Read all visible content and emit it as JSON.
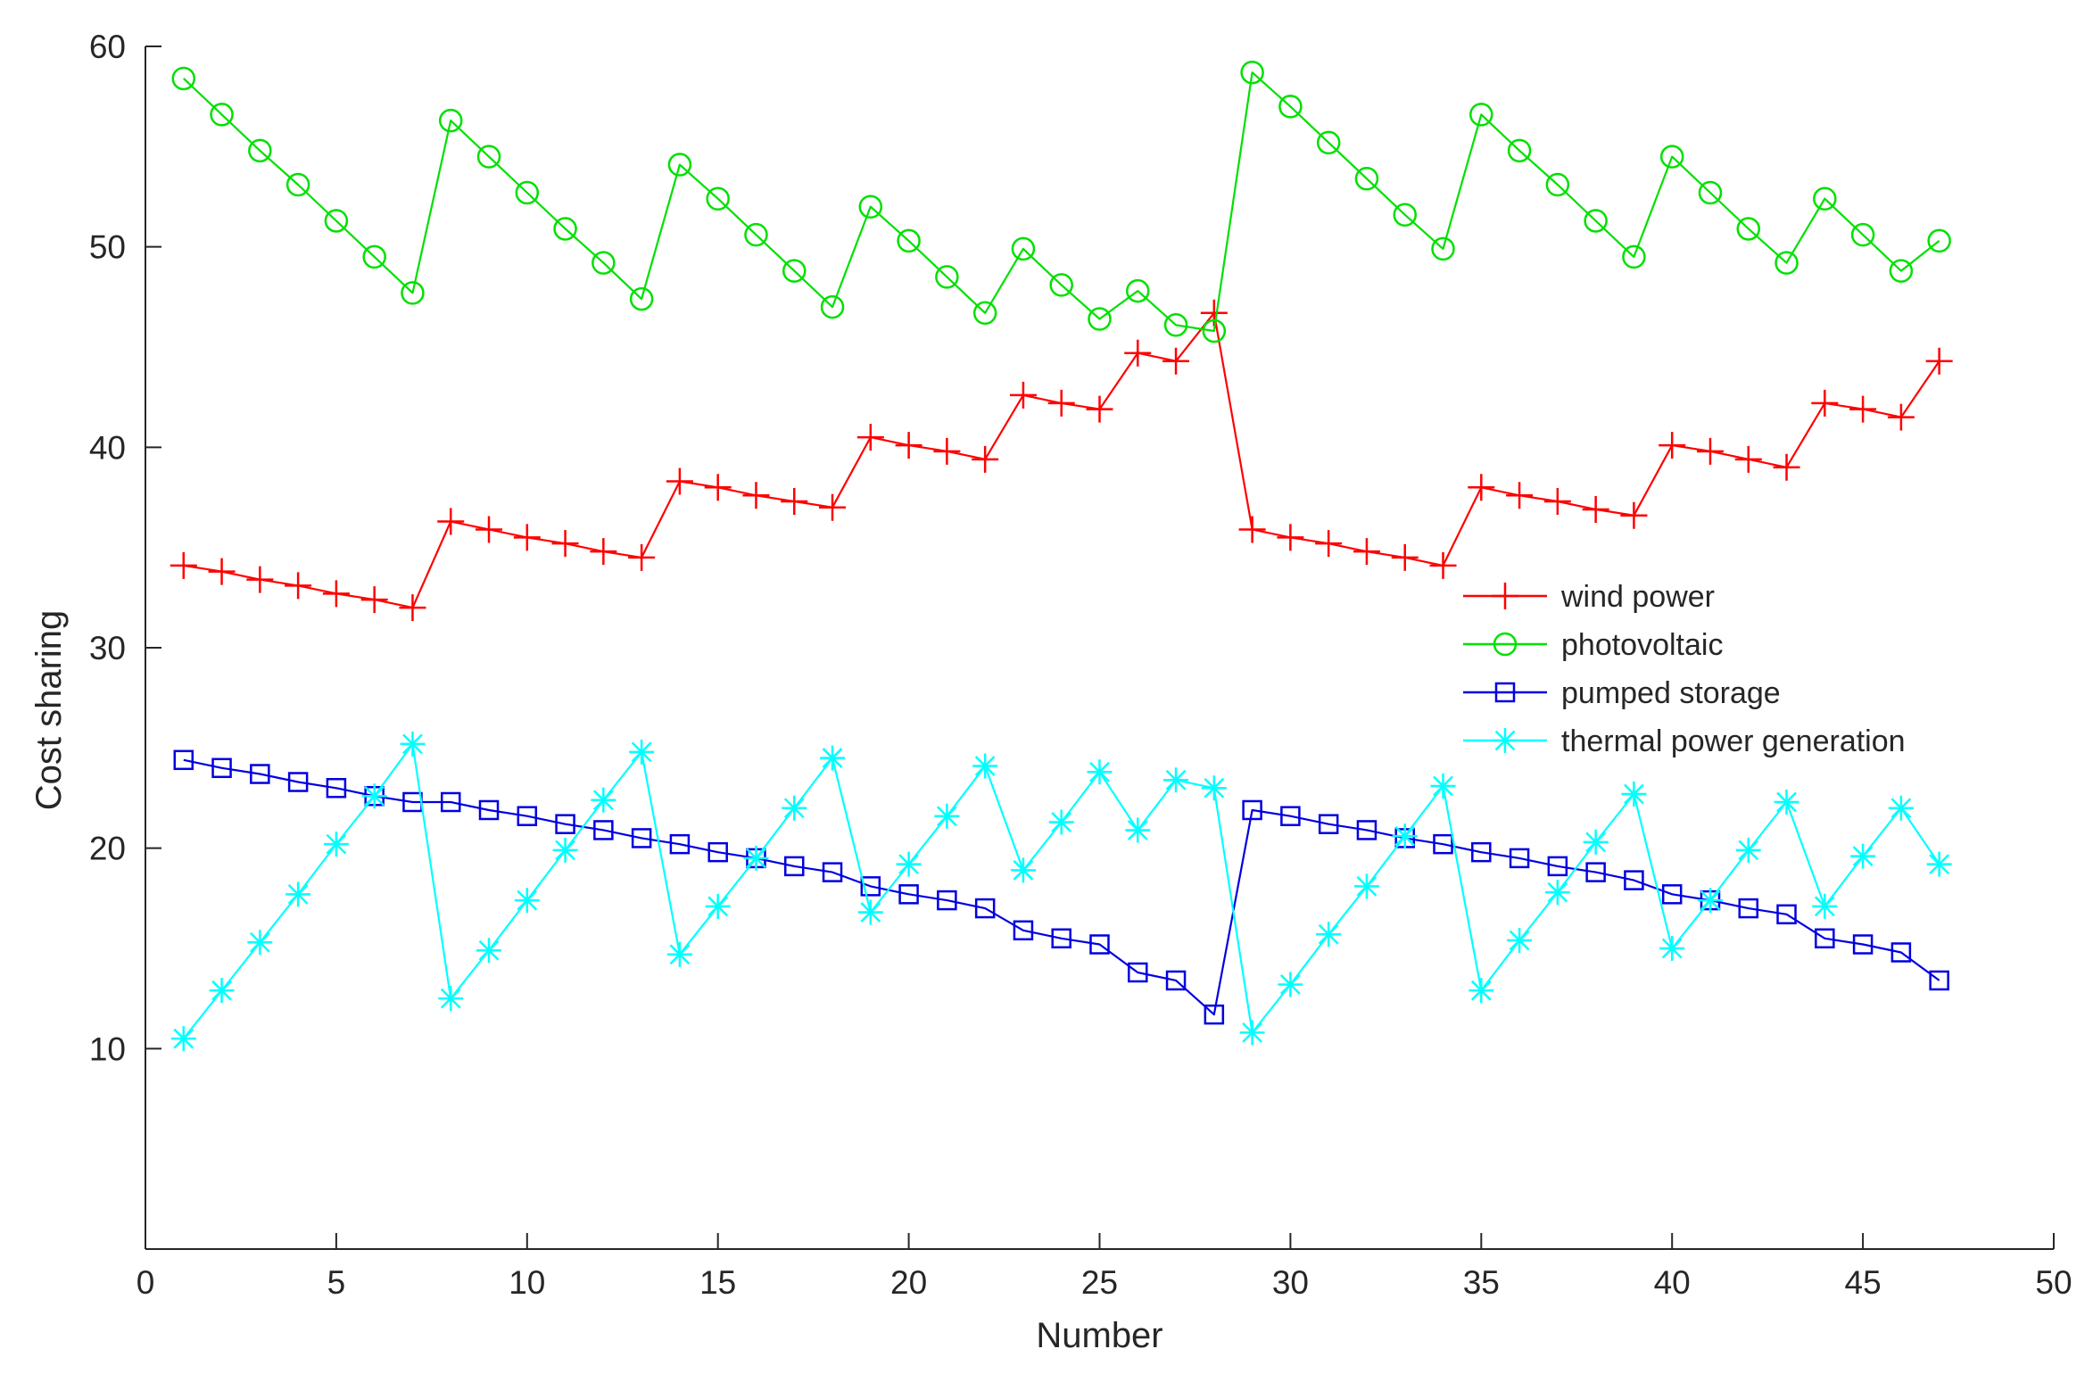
{
  "chart_data": {
    "type": "line",
    "title": "",
    "xlabel": "Number",
    "ylabel": "Cost sharing",
    "xlim": [
      0,
      50
    ],
    "ylim": [
      0,
      60
    ],
    "xticks": [
      0,
      5,
      10,
      15,
      20,
      25,
      30,
      35,
      40,
      45,
      50
    ],
    "yticks": [
      10,
      20,
      30,
      40,
      50,
      60
    ],
    "grid": false,
    "legend_position": "right-center",
    "x": [
      1,
      2,
      3,
      4,
      5,
      6,
      7,
      8,
      9,
      10,
      11,
      12,
      13,
      14,
      15,
      16,
      17,
      18,
      19,
      20,
      21,
      22,
      23,
      24,
      25,
      26,
      27,
      28,
      29,
      30,
      31,
      32,
      33,
      34,
      35,
      36,
      37,
      38,
      39,
      40,
      41,
      42,
      43,
      44,
      45,
      46,
      47
    ],
    "series": [
      {
        "name": "wind power",
        "color": "#ff0000",
        "marker": "plus",
        "values": [
          34.1,
          33.8,
          33.4,
          33.1,
          32.7,
          32.4,
          32.0,
          36.3,
          35.9,
          35.5,
          35.2,
          34.8,
          34.5,
          38.3,
          38.0,
          37.6,
          37.3,
          37.0,
          40.5,
          40.1,
          39.8,
          39.4,
          42.6,
          42.2,
          41.9,
          44.7,
          44.3,
          46.7,
          35.9,
          35.5,
          35.2,
          34.8,
          34.5,
          34.1,
          38.0,
          37.6,
          37.3,
          36.9,
          36.6,
          40.1,
          39.8,
          39.4,
          39.0,
          42.2,
          41.9,
          41.5,
          44.3
        ]
      },
      {
        "name": "photovoltaic",
        "color": "#00e000",
        "marker": "circle",
        "values": [
          58.4,
          56.6,
          54.8,
          53.1,
          51.3,
          49.5,
          47.7,
          56.3,
          54.5,
          52.7,
          50.9,
          49.2,
          47.4,
          54.1,
          52.4,
          50.6,
          48.8,
          47.0,
          52.0,
          50.3,
          48.5,
          46.7,
          49.9,
          48.1,
          46.4,
          47.8,
          46.1,
          45.8,
          58.7,
          57.0,
          55.2,
          53.4,
          51.6,
          49.9,
          56.6,
          54.8,
          53.1,
          51.3,
          49.5,
          54.5,
          52.7,
          50.9,
          49.2,
          52.4,
          50.6,
          48.8,
          50.3
        ]
      },
      {
        "name": "pumped storage",
        "color": "#0000e0",
        "marker": "square",
        "values": [
          24.4,
          24.0,
          23.7,
          23.3,
          23.0,
          22.6,
          22.3,
          22.3,
          21.9,
          21.6,
          21.2,
          20.9,
          20.5,
          20.2,
          19.8,
          19.5,
          19.1,
          18.8,
          18.1,
          17.7,
          17.4,
          17.0,
          15.9,
          15.5,
          15.2,
          13.8,
          13.4,
          11.7,
          21.9,
          21.6,
          21.2,
          20.9,
          20.5,
          20.2,
          19.8,
          19.5,
          19.1,
          18.8,
          18.4,
          17.7,
          17.4,
          17.0,
          16.7,
          15.5,
          15.2,
          14.8,
          13.4
        ]
      },
      {
        "name": "thermal power generation",
        "color": "#00ffff",
        "marker": "asterisk",
        "values": [
          10.5,
          12.9,
          15.3,
          17.7,
          20.2,
          22.6,
          25.2,
          12.5,
          14.9,
          17.4,
          19.9,
          22.4,
          24.8,
          14.7,
          17.1,
          19.5,
          22.0,
          24.5,
          16.8,
          19.2,
          21.6,
          24.1,
          18.9,
          21.3,
          23.8,
          20.9,
          23.4,
          23.0,
          10.8,
          13.2,
          15.7,
          18.1,
          20.6,
          23.1,
          12.9,
          15.4,
          17.8,
          20.3,
          22.7,
          15.0,
          17.4,
          19.9,
          22.3,
          17.1,
          19.6,
          22.0,
          19.2
        ]
      }
    ]
  }
}
